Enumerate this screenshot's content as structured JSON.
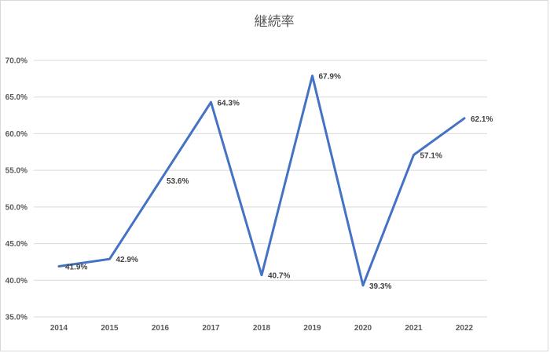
{
  "chart_data": {
    "type": "line",
    "title": "継続率",
    "xlabel": "",
    "ylabel": "",
    "categories": [
      "2014",
      "2015",
      "2016",
      "2017",
      "2018",
      "2019",
      "2020",
      "2021",
      "2022"
    ],
    "series": [
      {
        "values": [
          41.9,
          42.9,
          53.6,
          64.3,
          40.7,
          67.9,
          39.3,
          57.1,
          62.1
        ],
        "labels": [
          "41.9%",
          "42.9%",
          "53.6%",
          "64.3%",
          "40.7%",
          "67.9%",
          "39.3%",
          "57.1%",
          "62.1%"
        ]
      }
    ],
    "ylim": [
      35,
      70
    ],
    "yticks": [
      35,
      40,
      45,
      50,
      55,
      60,
      65,
      70
    ],
    "ytick_labels": [
      "35.0%",
      "40.0%",
      "45.0%",
      "50.0%",
      "55.0%",
      "60.0%",
      "65.0%",
      "70.0%"
    ],
    "grid": true,
    "legend": "none",
    "colors": {
      "line": "#4472C4",
      "grid": "#d9d9d9",
      "text": "#595959"
    }
  }
}
